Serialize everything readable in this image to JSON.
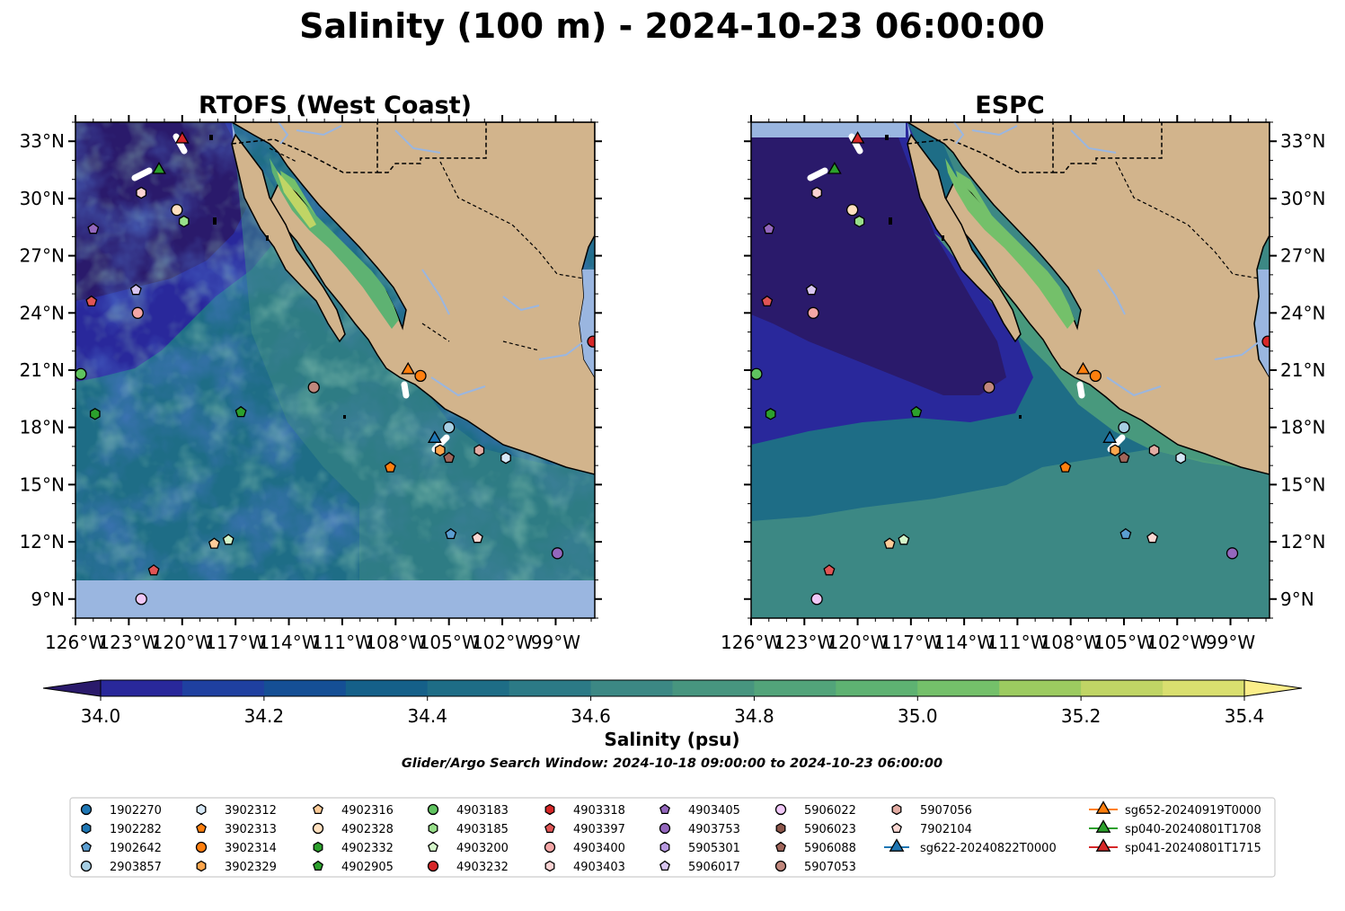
{
  "title": "Salinity (100 m) - 2024-10-23 06:00:00",
  "panels": [
    {
      "title": "RTOFS (West Coast)"
    },
    {
      "title": "ESPC"
    }
  ],
  "colorbar": {
    "label": "Salinity (psu)",
    "ticks": [
      "34.0",
      "34.2",
      "34.4",
      "34.6",
      "34.8",
      "35.0",
      "35.2",
      "35.4"
    ],
    "levels": [
      34.0,
      34.1,
      34.2,
      34.3,
      34.4,
      34.5,
      34.6,
      34.7,
      34.8,
      34.9,
      35.0,
      35.1,
      35.2,
      35.3,
      35.4
    ],
    "under_color": "#2a1a6b",
    "over_color": "#fbee8a",
    "colors": [
      "#2a1a6b",
      "#29289b",
      "#1f40a0",
      "#154f95",
      "#156089",
      "#1e6d86",
      "#2c7a86",
      "#3c8884",
      "#47957f",
      "#52a47a",
      "#5eb272",
      "#74c06a",
      "#9ccb60",
      "#c0d565",
      "#d9df6f"
    ]
  },
  "window_text": "Glider/Argo Search Window: 2024-10-18 09:00:00 to 2024-10-23 06:00:00",
  "chart_data": [
    {
      "type": "heatmap",
      "title": "RTOFS (West Coast)",
      "xlim": [
        -126,
        -96.8
      ],
      "ylim": [
        8,
        34
      ],
      "xticks": [
        "126°W",
        "123°W",
        "120°W",
        "117°W",
        "114°W",
        "111°W",
        "108°W",
        "105°W",
        "102°W",
        "99°W"
      ],
      "yticks": [
        "9°N",
        "12°N",
        "15°N",
        "18°N",
        "21°N",
        "24°N",
        "27°N",
        "30°N",
        "33°N"
      ],
      "data_extent_south": 10.1
    },
    {
      "type": "heatmap",
      "title": "ESPC",
      "xlim": [
        -126,
        -96.8
      ],
      "ylim": [
        8,
        34
      ],
      "xticks": [
        "126°W",
        "123°W",
        "120°W",
        "117°W",
        "114°W",
        "111°W",
        "108°W",
        "105°W",
        "102°W",
        "99°W"
      ],
      "yticks": [
        "9°N",
        "12°N",
        "15°N",
        "18°N",
        "21°N",
        "24°N",
        "27°N",
        "30°N",
        "33°N"
      ],
      "data_extent_north": 33.0
    }
  ],
  "platforms": [
    {
      "id": "1902270",
      "shape": "circle",
      "color": "#1f77b4",
      "lon": null,
      "lat": null
    },
    {
      "id": "1902282",
      "shape": "hexagon",
      "color": "#1f77b4",
      "lon": null,
      "lat": null
    },
    {
      "id": "1902642",
      "shape": "pentagon",
      "color": "#5b9ed1",
      "lon": -104.9,
      "lat": 12.4
    },
    {
      "id": "2903857",
      "shape": "circle",
      "color": "#a6cee3",
      "lon": -105.0,
      "lat": 18.0
    },
    {
      "id": "3902312",
      "shape": "hexagon",
      "color": "#d6e8f7",
      "lon": -101.8,
      "lat": 16.4
    },
    {
      "id": "3902313",
      "shape": "pentagon",
      "color": "#ff7f0e",
      "lon": -108.3,
      "lat": 15.9
    },
    {
      "id": "3902314",
      "shape": "circle",
      "color": "#ff7f0e",
      "lon": -106.6,
      "lat": 20.7
    },
    {
      "id": "3902329",
      "shape": "hexagon",
      "color": "#ffa64d",
      "lon": -105.5,
      "lat": 16.8
    },
    {
      "id": "4902316",
      "shape": "pentagon",
      "color": "#ffcc99",
      "lon": -118.2,
      "lat": 11.9
    },
    {
      "id": "4902328",
      "shape": "circle",
      "color": "#ffe0bf",
      "lon": -120.3,
      "lat": 29.4
    },
    {
      "id": "4902332",
      "shape": "hexagon",
      "color": "#2ca02c",
      "lon": -124.9,
      "lat": 18.7
    },
    {
      "id": "4902905",
      "shape": "pentagon",
      "color": "#2ca02c",
      "lon": -116.7,
      "lat": 18.8
    },
    {
      "id": "4903183",
      "shape": "circle",
      "color": "#5fc35f",
      "lon": -125.7,
      "lat": 20.8
    },
    {
      "id": "4903185",
      "shape": "hexagon",
      "color": "#98df8a",
      "lon": -119.9,
      "lat": 28.8
    },
    {
      "id": "4903200",
      "shape": "pentagon",
      "color": "#d4f5c9",
      "lon": -117.4,
      "lat": 12.1
    },
    {
      "id": "4903232",
      "shape": "circle",
      "color": "#d62728",
      "lon": -96.9,
      "lat": 22.5
    },
    {
      "id": "4903318",
      "shape": "hexagon",
      "color": "#d62728",
      "lon": null,
      "lat": null
    },
    {
      "id": "4903397",
      "shape": "pentagon",
      "color": "#e05555",
      "lon": -125.1,
      "lat": 24.6,
      "lon2": -121.6,
      "lat2": 10.5
    },
    {
      "id": "4903400",
      "shape": "circle",
      "color": "#f4a6a6",
      "lon": -122.5,
      "lat": 24.0
    },
    {
      "id": "4903403",
      "shape": "hexagon",
      "color": "#fbd3d3",
      "lon": -122.3,
      "lat": 30.3
    },
    {
      "id": "4903405",
      "shape": "pentagon",
      "color": "#9467bd",
      "lon": -125.0,
      "lat": 28.4
    },
    {
      "id": "4903753",
      "shape": "circle",
      "color": "#9467bd",
      "lon": -98.9,
      "lat": 11.4
    },
    {
      "id": "5905301",
      "shape": "hexagon",
      "color": "#b799e0",
      "lon": null,
      "lat": null
    },
    {
      "id": "5906017",
      "shape": "pentagon",
      "color": "#d8c5f0",
      "lon": -122.6,
      "lat": 25.2
    },
    {
      "id": "5906022",
      "shape": "circle",
      "color": "#f0c8f7",
      "lon": -122.3,
      "lat": 9.0
    },
    {
      "id": "5906023",
      "shape": "hexagon",
      "color": "#8c564b",
      "lon": null,
      "lat": null
    },
    {
      "id": "5906088",
      "shape": "pentagon",
      "color": "#a0655a",
      "lon": -105.0,
      "lat": 16.4
    },
    {
      "id": "5907053",
      "shape": "circle",
      "color": "#c0877c",
      "lon": -112.6,
      "lat": 20.1
    },
    {
      "id": "5907056",
      "shape": "hexagon",
      "color": "#e3aca3",
      "lon": -103.3,
      "lat": 16.8
    },
    {
      "id": "7902104",
      "shape": "pentagon",
      "color": "#fbd8d3",
      "lon": -103.4,
      "lat": 12.2
    },
    {
      "id": "sg622-20240822T0000",
      "shape": "triangle",
      "color": "#1f77b4",
      "lon": -105.8,
      "lat": 17.4
    },
    {
      "id": "sg652-20240919T0000",
      "shape": "triangle",
      "color": "#ff7f0e",
      "lon": -107.3,
      "lat": 21.0
    },
    {
      "id": "sp040-20240801T1708",
      "shape": "triangle",
      "color": "#2ca02c",
      "lon": -121.3,
      "lat": 31.5
    },
    {
      "id": "sp041-20240801T1715",
      "shape": "triangle",
      "color": "#d62728",
      "lon": -120.0,
      "lat": 33.1
    }
  ],
  "map_colors": {
    "land": "#d2b48c",
    "no_data": "#9ab6e0",
    "rivers": "#9ab6e0",
    "border": "#000000"
  }
}
